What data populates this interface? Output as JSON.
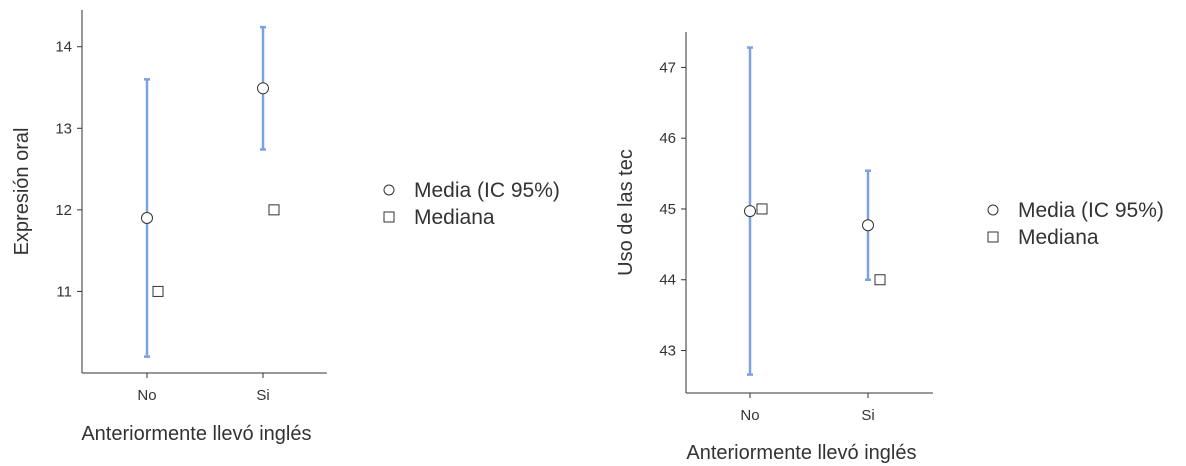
{
  "colors": {
    "error_bar": "#7ba3e0",
    "axis": "#333333",
    "marker_stroke": "#333333",
    "marker_fill": "#ffffff",
    "text": "#333333"
  },
  "legend": {
    "mean_label": "Media (IC 95%)",
    "median_label": "Mediana",
    "mean_icon": "circle-marker",
    "median_icon": "square-marker"
  },
  "chart_data": [
    {
      "type": "scatter",
      "xlabel": "Anteriormente llevó inglés",
      "ylabel": "Expresión oral",
      "categories": [
        "No",
        "Si"
      ],
      "yticks": [
        11,
        12,
        13,
        14
      ],
      "ylim": [
        10.0,
        14.45
      ],
      "grid": false,
      "legend_position": "right",
      "series": [
        {
          "name": "Media (IC 95%)",
          "values": [
            11.9,
            13.49
          ],
          "ci_low": [
            10.2,
            12.74
          ],
          "ci_high": [
            13.6,
            14.24
          ]
        },
        {
          "name": "Mediana",
          "values": [
            11.0,
            12.0
          ]
        }
      ]
    },
    {
      "type": "scatter",
      "xlabel": "Anteriormente llevó inglés",
      "ylabel": "Uso de las tec",
      "categories": [
        "No",
        "Si"
      ],
      "yticks": [
        43,
        44,
        45,
        46,
        47
      ],
      "ylim": [
        42.4,
        47.5
      ],
      "grid": false,
      "legend_position": "right",
      "series": [
        {
          "name": "Media (IC 95%)",
          "values": [
            44.97,
            44.77
          ],
          "ci_low": [
            42.66,
            44.0
          ],
          "ci_high": [
            47.28,
            45.54
          ]
        },
        {
          "name": "Mediana",
          "values": [
            45.0,
            44.0
          ]
        }
      ]
    }
  ]
}
